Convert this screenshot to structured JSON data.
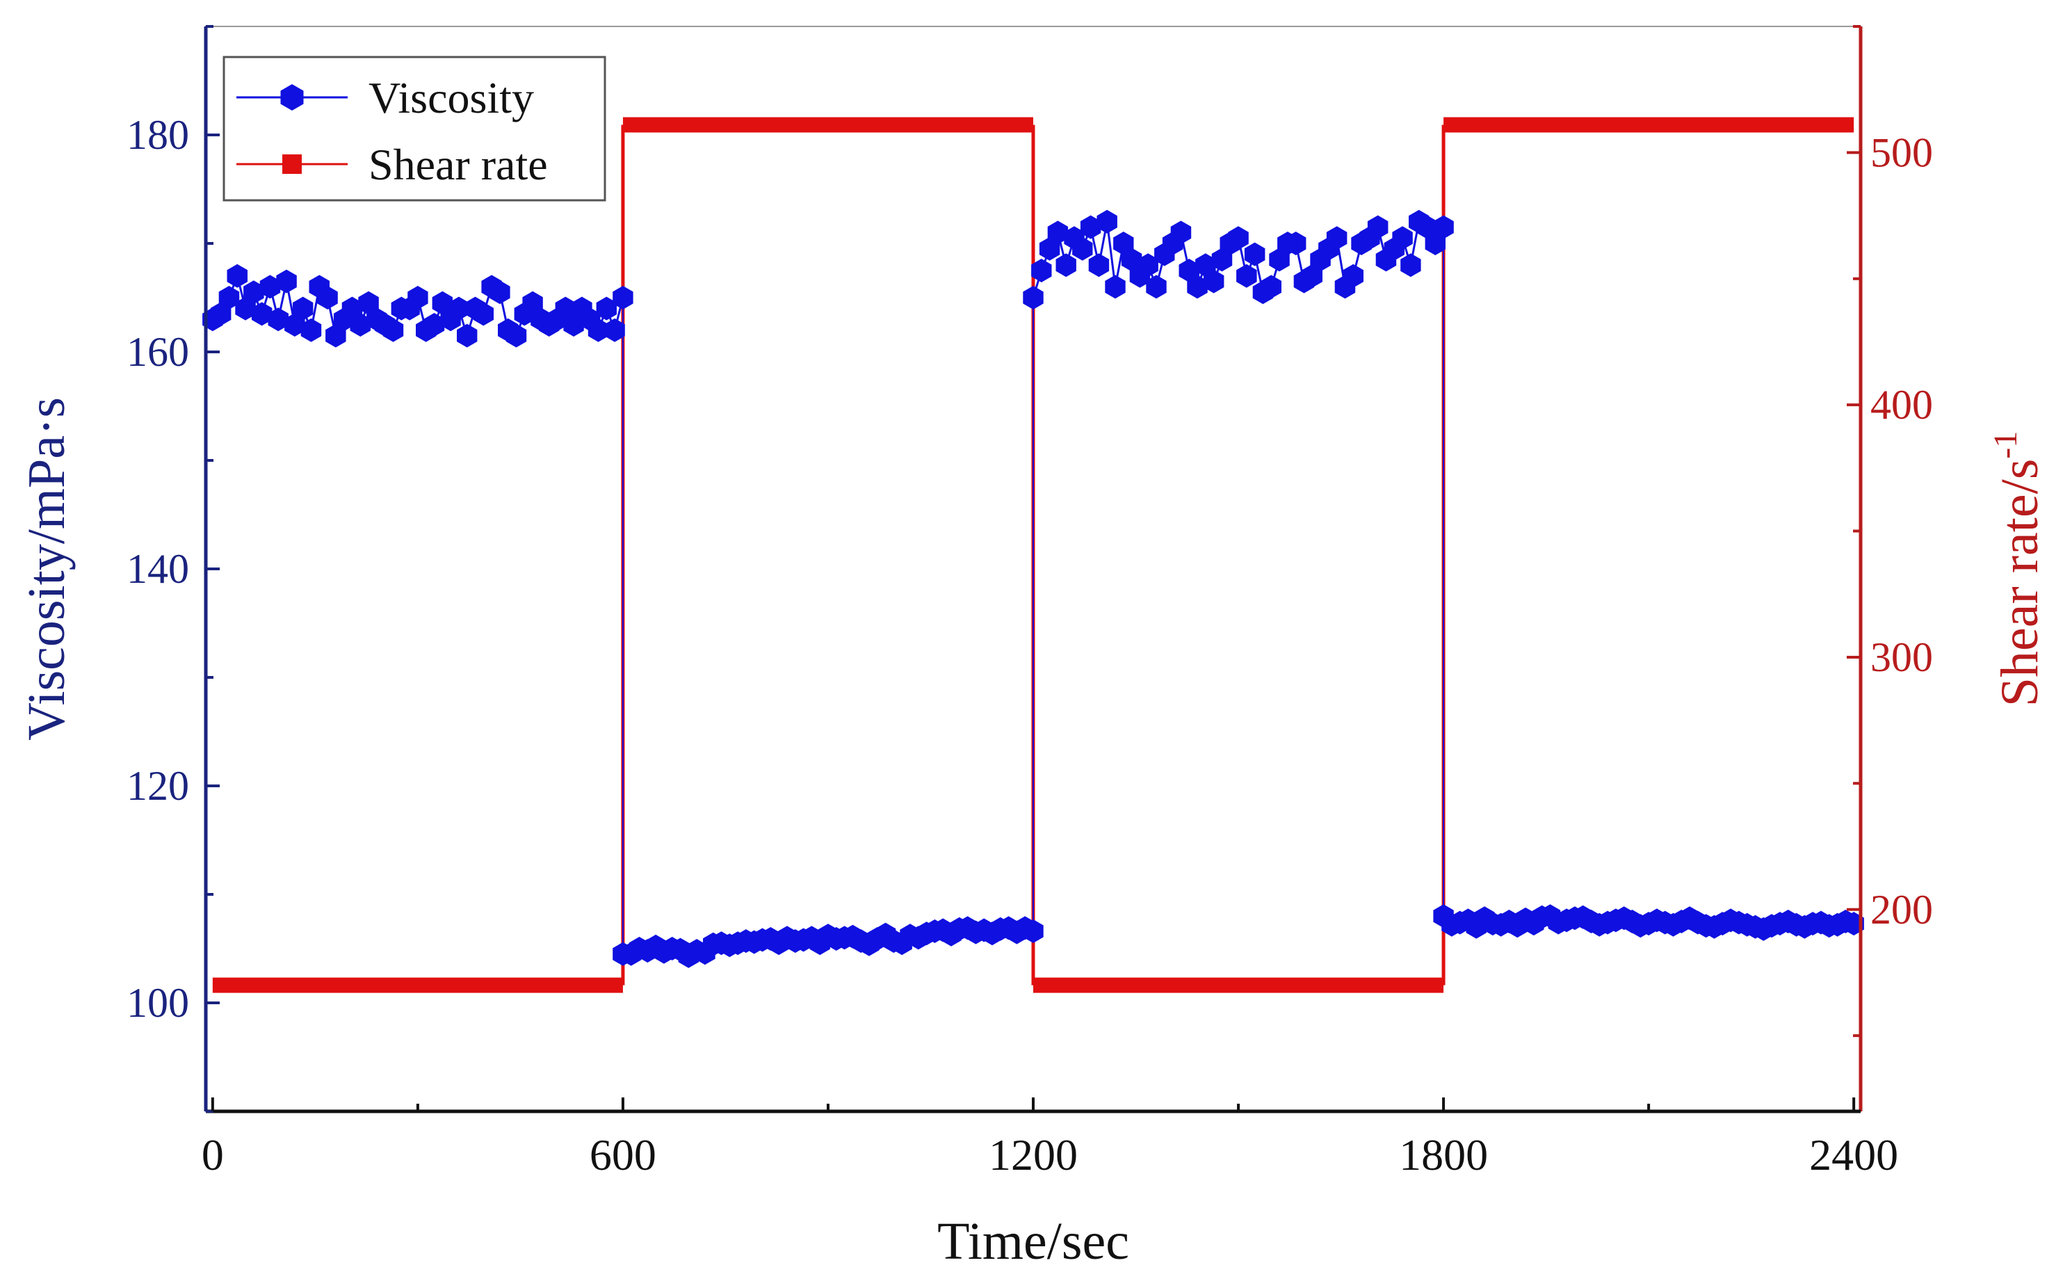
{
  "chart_data": {
    "type": "line",
    "title": "",
    "xlabel": "Time/sec",
    "ylabel_left": "Viscosity/mPa·s",
    "ylabel_right_base": "Shear rate/s",
    "ylabel_right_exp": "-1",
    "xlim": [
      -10,
      2410
    ],
    "ylim_left": [
      90,
      190
    ],
    "ylim_right": [
      120,
      550
    ],
    "x_ticks": [
      "0",
      "600",
      "1200",
      "1800",
      "2400"
    ],
    "x_tick_values": [
      0,
      600,
      1200,
      1800,
      2400
    ],
    "y_left_ticks": [
      "100",
      "120",
      "140",
      "160",
      "180"
    ],
    "y_left_tick_values": [
      100,
      120,
      140,
      160,
      180
    ],
    "y_right_ticks": [
      "200",
      "300",
      "400",
      "500"
    ],
    "y_right_tick_values": [
      200,
      300,
      400,
      500
    ],
    "legend_position": "top-left",
    "colors": {
      "viscosity": "#1010e0",
      "shear_rate": "#e01010",
      "left_axis": "#1a237e",
      "right_axis": "#b71c1c",
      "bottom_axis": "#111111"
    },
    "series": [
      {
        "name": "Viscosity",
        "axis": "left",
        "marker": "hexagon",
        "x": [
          0,
          12,
          24,
          36,
          48,
          60,
          72,
          84,
          96,
          108,
          120,
          132,
          144,
          156,
          168,
          180,
          192,
          204,
          216,
          228,
          240,
          252,
          264,
          276,
          288,
          300,
          312,
          324,
          336,
          348,
          360,
          372,
          384,
          396,
          408,
          420,
          432,
          444,
          456,
          468,
          480,
          492,
          504,
          516,
          528,
          540,
          552,
          564,
          576,
          588,
          600,
          600,
          612,
          624,
          636,
          648,
          660,
          672,
          684,
          696,
          708,
          720,
          732,
          744,
          756,
          768,
          780,
          792,
          804,
          816,
          828,
          840,
          852,
          864,
          876,
          888,
          900,
          912,
          924,
          936,
          948,
          960,
          972,
          984,
          996,
          1008,
          1020,
          1032,
          1044,
          1056,
          1068,
          1080,
          1092,
          1104,
          1116,
          1128,
          1140,
          1152,
          1164,
          1176,
          1188,
          1200,
          1200,
          1212,
          1224,
          1236,
          1248,
          1260,
          1272,
          1284,
          1296,
          1308,
          1320,
          1332,
          1344,
          1356,
          1368,
          1380,
          1392,
          1404,
          1416,
          1428,
          1440,
          1452,
          1464,
          1476,
          1488,
          1500,
          1512,
          1524,
          1536,
          1548,
          1560,
          1572,
          1584,
          1596,
          1608,
          1620,
          1632,
          1644,
          1656,
          1668,
          1680,
          1692,
          1704,
          1716,
          1728,
          1740,
          1752,
          1764,
          1776,
          1788,
          1800,
          1800,
          1812,
          1824,
          1836,
          1848,
          1860,
          1872,
          1884,
          1896,
          1908,
          1920,
          1932,
          1944,
          1956,
          1968,
          1980,
          1992,
          2004,
          2016,
          2028,
          2040,
          2052,
          2064,
          2076,
          2088,
          2100,
          2112,
          2124,
          2136,
          2148,
          2160,
          2172,
          2184,
          2196,
          2208,
          2220,
          2232,
          2244,
          2256,
          2268,
          2280,
          2292,
          2304,
          2316,
          2328,
          2340,
          2352,
          2364,
          2376,
          2388,
          2400
        ],
        "y": [
          163,
          163.5,
          165,
          167,
          164,
          165.5,
          163.5,
          166,
          163,
          166.5,
          162.5,
          164,
          162,
          166,
          165,
          161.5,
          163,
          164,
          162.5,
          164.5,
          163,
          162.5,
          162,
          164,
          164,
          165,
          162,
          162.5,
          164.5,
          163,
          164,
          161.5,
          164,
          163.5,
          166,
          165.5,
          162,
          161.5,
          163.5,
          164.5,
          163,
          162.5,
          163,
          164,
          162.5,
          164,
          163,
          162,
          164,
          162,
          165,
          104.5,
          104.5,
          105,
          104.8,
          105.2,
          104.7,
          105,
          104.9,
          104.3,
          104.8,
          104.6,
          105.4,
          105.5,
          105.3,
          105.5,
          105.7,
          105.6,
          105.8,
          105.9,
          105.5,
          106,
          105.7,
          105.8,
          106,
          105.5,
          106.2,
          105.9,
          106,
          106.1,
          105.7,
          105.4,
          105.9,
          106.3,
          105.7,
          105.5,
          106.2,
          106,
          106.4,
          106.6,
          106.7,
          106.3,
          106.8,
          106.9,
          106.5,
          106.7,
          106.4,
          106.8,
          106.9,
          106.5,
          106.9,
          106.6,
          165,
          167.5,
          169.5,
          171,
          168,
          170.5,
          169.5,
          171.5,
          168,
          172,
          166,
          170,
          168.5,
          167,
          168,
          166,
          169,
          170,
          171,
          167.5,
          166,
          168,
          166.5,
          168.5,
          170,
          170.5,
          167,
          169,
          165.5,
          166,
          168.5,
          170,
          170,
          166.5,
          167,
          168.5,
          169.5,
          170.5,
          166,
          167,
          170,
          170.5,
          171.5,
          168.5,
          169.5,
          170.5,
          168,
          172,
          171.5,
          170,
          171.5,
          108,
          107.2,
          107.4,
          107.6,
          107,
          107.8,
          107.3,
          107.2,
          107.5,
          107.1,
          107.7,
          107.3,
          107.9,
          108,
          107.4,
          107.6,
          107.8,
          107.9,
          107.5,
          107.2,
          107.4,
          107.6,
          107.8,
          107.5,
          107.1,
          107.3,
          107.6,
          107.4,
          107.2,
          107.5,
          107.8,
          107.4,
          107.1,
          107,
          107.3,
          107.6,
          107.4,
          107.2,
          107,
          106.8,
          107.1,
          107.3,
          107.5,
          107.2,
          107,
          107.3,
          107.4,
          107.1,
          107.2,
          107.5,
          107.3
        ]
      },
      {
        "name": "Shear rate",
        "axis": "right",
        "marker": "square",
        "x": [
          0,
          600,
          600,
          1200,
          1200,
          1800,
          1800,
          2400
        ],
        "y": [
          170,
          170,
          511,
          511,
          170,
          170,
          511,
          511
        ]
      }
    ]
  }
}
